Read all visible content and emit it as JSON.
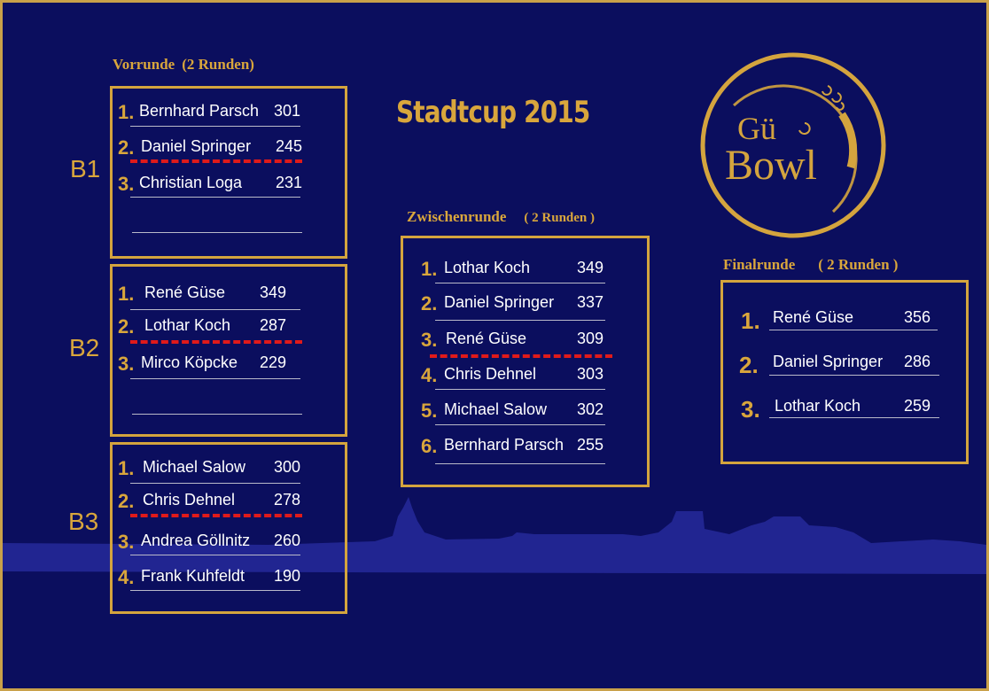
{
  "title": "Stadtcup 2015",
  "logo": {
    "line1": "Gü",
    "line2": "Bowl"
  },
  "vorrunde": {
    "title": "Vorrunde",
    "rounds": "(2 Runden)",
    "groups": [
      {
        "label": "B1",
        "rows": [
          {
            "rank": "1.",
            "name": "Bernhard Parsch",
            "score": "301"
          },
          {
            "rank": "2.",
            "name": "Daniel Springer",
            "score": "245"
          },
          {
            "rank": "3.",
            "name": "Christian Loga",
            "score": "231"
          }
        ]
      },
      {
        "label": "B2",
        "rows": [
          {
            "rank": "1.",
            "name": "René Güse",
            "score": "349"
          },
          {
            "rank": "2.",
            "name": "Lothar Koch",
            "score": "287"
          },
          {
            "rank": "3.",
            "name": "Mirco Köpcke",
            "score": "229"
          }
        ]
      },
      {
        "label": "B3",
        "rows": [
          {
            "rank": "1.",
            "name": "Michael Salow",
            "score": "300"
          },
          {
            "rank": "2.",
            "name": "Chris Dehnel",
            "score": "278"
          },
          {
            "rank": "3.",
            "name": "Andrea Göllnitz",
            "score": "260"
          },
          {
            "rank": "4.",
            "name": "Frank Kuhfeldt",
            "score": "190"
          }
        ]
      }
    ]
  },
  "zwischenrunde": {
    "title": "Zwischenrunde",
    "rounds": "( 2 Runden )",
    "rows": [
      {
        "rank": "1.",
        "name": "Lothar Koch",
        "score": "349"
      },
      {
        "rank": "2.",
        "name": "Daniel Springer",
        "score": "337"
      },
      {
        "rank": "3.",
        "name": "René Güse",
        "score": "309"
      },
      {
        "rank": "4.",
        "name": "Chris Dehnel",
        "score": "303"
      },
      {
        "rank": "5.",
        "name": "Michael Salow",
        "score": "302"
      },
      {
        "rank": "6.",
        "name": "Bernhard Parsch",
        "score": "255"
      }
    ]
  },
  "finalrunde": {
    "title": "Finalrunde",
    "rounds": "( 2 Runden )",
    "rows": [
      {
        "rank": "1.",
        "name": "René Güse",
        "score": "356"
      },
      {
        "rank": "2.",
        "name": "Daniel Springer",
        "score": "286"
      },
      {
        "rank": "3.",
        "name": "Lothar Koch",
        "score": "259"
      }
    ]
  },
  "colors": {
    "background": "#0b0e5e",
    "gold": "#d4a43e",
    "cutoff": "#e01a1a",
    "text": "#ffffff"
  }
}
